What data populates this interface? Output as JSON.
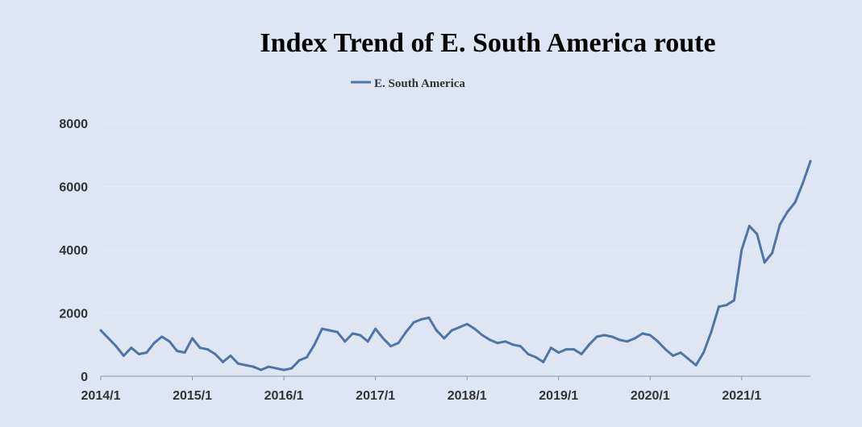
{
  "chart_data": {
    "type": "line",
    "title": "Index Trend of E. South America route",
    "xlabel": "",
    "ylabel": "",
    "ylim": [
      0,
      8000
    ],
    "yticks": [
      0,
      2000,
      4000,
      6000,
      8000
    ],
    "xlim": [
      "2014/1",
      "2021/10"
    ],
    "xticks": [
      "2014/1",
      "2015/1",
      "2016/1",
      "2017/1",
      "2018/1",
      "2019/1",
      "2020/1",
      "2021/1"
    ],
    "grid": true,
    "legend": "top-center",
    "colors": {
      "line": "#4f74a6",
      "background": "#dde6f2"
    },
    "series": [
      {
        "name": "E. South America",
        "x": [
          "2014/1",
          "2014/2",
          "2014/3",
          "2014/4",
          "2014/5",
          "2014/6",
          "2014/7",
          "2014/8",
          "2014/9",
          "2014/10",
          "2014/11",
          "2014/12",
          "2015/1",
          "2015/2",
          "2015/3",
          "2015/4",
          "2015/5",
          "2015/6",
          "2015/7",
          "2015/8",
          "2015/9",
          "2015/10",
          "2015/11",
          "2015/12",
          "2016/1",
          "2016/2",
          "2016/3",
          "2016/4",
          "2016/5",
          "2016/6",
          "2016/7",
          "2016/8",
          "2016/9",
          "2016/10",
          "2016/11",
          "2016/12",
          "2017/1",
          "2017/2",
          "2017/3",
          "2017/4",
          "2017/5",
          "2017/6",
          "2017/7",
          "2017/8",
          "2017/9",
          "2017/10",
          "2017/11",
          "2017/12",
          "2018/1",
          "2018/2",
          "2018/3",
          "2018/4",
          "2018/5",
          "2018/6",
          "2018/7",
          "2018/8",
          "2018/9",
          "2018/10",
          "2018/11",
          "2018/12",
          "2019/1",
          "2019/2",
          "2019/3",
          "2019/4",
          "2019/5",
          "2019/6",
          "2019/7",
          "2019/8",
          "2019/9",
          "2019/10",
          "2019/11",
          "2019/12",
          "2020/1",
          "2020/2",
          "2020/3",
          "2020/4",
          "2020/5",
          "2020/6",
          "2020/7",
          "2020/8",
          "2020/9",
          "2020/10",
          "2020/11",
          "2020/12",
          "2021/1",
          "2021/2",
          "2021/3",
          "2021/4",
          "2021/5",
          "2021/6",
          "2021/7",
          "2021/8",
          "2021/9",
          "2021/10"
        ],
        "values": [
          1450,
          1200,
          950,
          650,
          900,
          700,
          750,
          1050,
          1250,
          1100,
          800,
          750,
          1200,
          900,
          850,
          700,
          450,
          650,
          400,
          350,
          300,
          200,
          300,
          250,
          200,
          250,
          500,
          600,
          1000,
          1500,
          1450,
          1400,
          1100,
          1350,
          1300,
          1100,
          1500,
          1200,
          950,
          1050,
          1400,
          1700,
          1800,
          1850,
          1450,
          1200,
          1450,
          1550,
          1650,
          1500,
          1300,
          1150,
          1050,
          1100,
          1000,
          950,
          700,
          600,
          450,
          900,
          750,
          850,
          850,
          700,
          1000,
          1250,
          1300,
          1250,
          1150,
          1100,
          1200,
          1350,
          1300,
          1100,
          850,
          650,
          750,
          550,
          350,
          750,
          1400,
          2200,
          2250,
          2400,
          4000,
          4750,
          4500,
          3600,
          3900,
          4800,
          5200,
          5500,
          6100,
          6800
        ]
      }
    ]
  }
}
